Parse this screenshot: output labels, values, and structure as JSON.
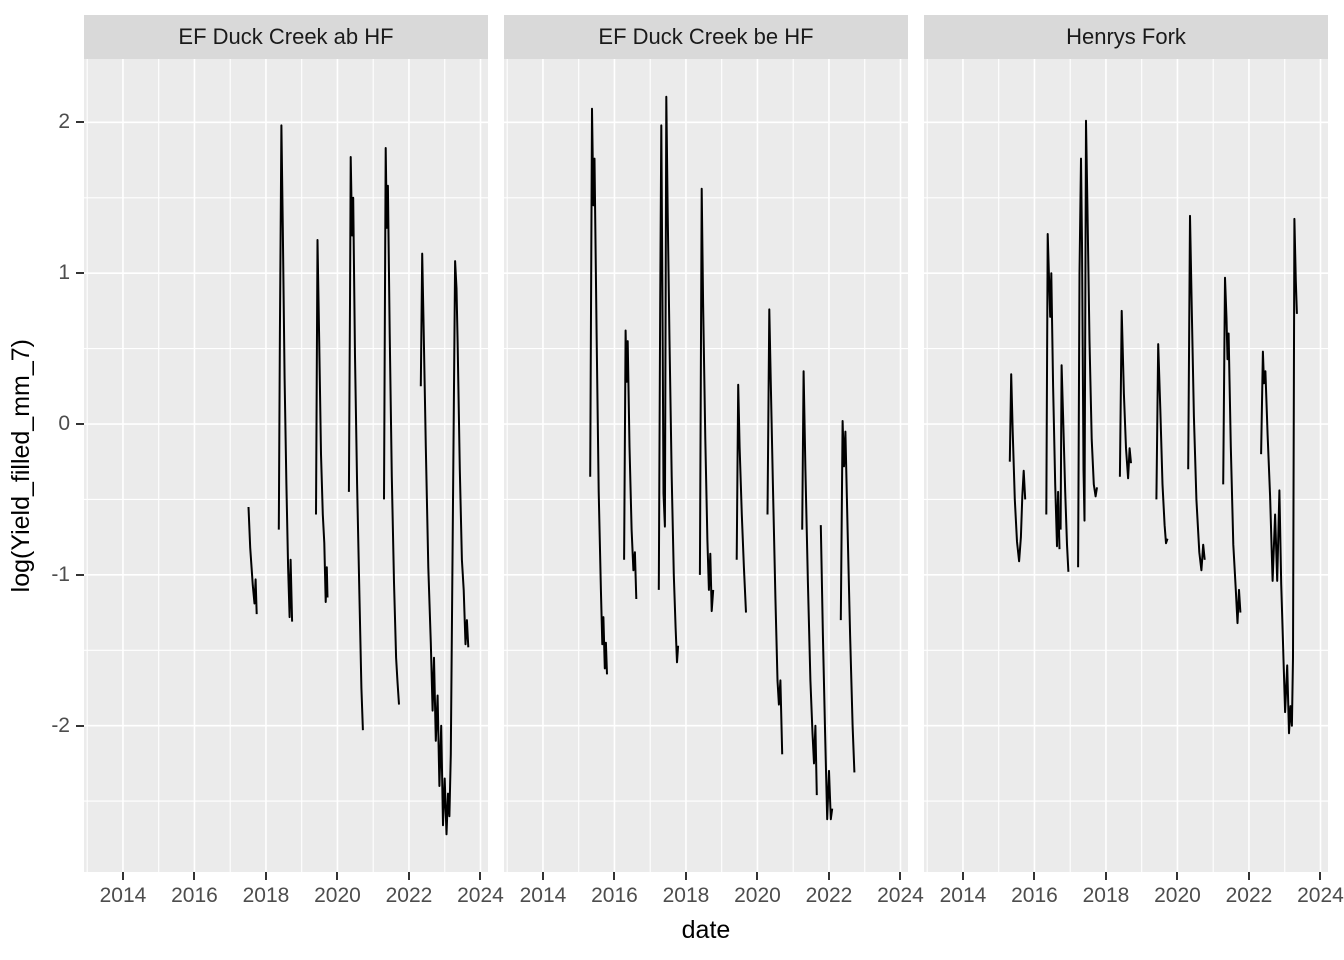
{
  "figure": {
    "background": "#FFFFFF",
    "panel_background": "#EBEBEB",
    "strip_background": "#D9D9D9",
    "grid_color": "#FFFFFF",
    "series_color": "#000000",
    "tick_mark_color": "#333333",
    "tick_label_color": "#4D4D4D",
    "title_color": "#000000"
  },
  "chart_data": {
    "type": "line",
    "faceted": true,
    "title": "",
    "xlabel": "date",
    "ylabel": "log(Yield_filled_mm_7)",
    "legend_position": "none",
    "grid": "on",
    "x_domain": [
      2012.91,
      2024.21
    ],
    "y_domain": [
      -2.97,
      2.42
    ],
    "x_major_ticks": [
      2014,
      2016,
      2018,
      2020,
      2022,
      2024
    ],
    "x_minor_ticks": [
      2013,
      2015,
      2017,
      2019,
      2021,
      2023
    ],
    "y_major_ticks": [
      2,
      1,
      0,
      -1,
      -2
    ],
    "y_minor_ticks": [
      1.5,
      0.5,
      -0.5,
      -1.5,
      -2.5
    ],
    "panels": [
      {
        "label": "EF Duck Creek ab HF",
        "segments": [
          [
            [
              2017.51,
              -0.55
            ],
            [
              2017.56,
              -0.82
            ],
            [
              2017.63,
              -1.07
            ],
            [
              2017.68,
              -1.19
            ],
            [
              2017.71,
              -1.03
            ],
            [
              2017.74,
              -1.26
            ]
          ],
          [
            [
              2018.36,
              -0.7
            ],
            [
              2018.39,
              0.6
            ],
            [
              2018.43,
              1.98
            ],
            [
              2018.47,
              1.3
            ],
            [
              2018.52,
              0.3
            ],
            [
              2018.57,
              -0.4
            ],
            [
              2018.62,
              -0.95
            ],
            [
              2018.66,
              -1.28
            ],
            [
              2018.69,
              -0.9
            ],
            [
              2018.73,
              -1.31
            ]
          ],
          [
            [
              2019.4,
              -0.6
            ],
            [
              2019.44,
              1.22
            ],
            [
              2019.49,
              0.55
            ],
            [
              2019.54,
              -0.2
            ],
            [
              2019.59,
              -0.6
            ],
            [
              2019.63,
              -0.79
            ],
            [
              2019.67,
              -1.18
            ],
            [
              2019.7,
              -0.95
            ],
            [
              2019.72,
              -1.15
            ]
          ],
          [
            [
              2020.32,
              -0.45
            ],
            [
              2020.35,
              0.8
            ],
            [
              2020.37,
              1.77
            ],
            [
              2020.41,
              1.25
            ],
            [
              2020.44,
              1.5
            ],
            [
              2020.49,
              0.45
            ],
            [
              2020.55,
              -0.4
            ],
            [
              2020.61,
              -1.1
            ],
            [
              2020.67,
              -1.75
            ],
            [
              2020.71,
              -2.03
            ]
          ],
          [
            [
              2021.3,
              -0.5
            ],
            [
              2021.33,
              0.9
            ],
            [
              2021.35,
              1.83
            ],
            [
              2021.38,
              1.3
            ],
            [
              2021.41,
              1.58
            ],
            [
              2021.46,
              0.6
            ],
            [
              2021.52,
              -0.35
            ],
            [
              2021.58,
              -1.05
            ],
            [
              2021.64,
              -1.55
            ],
            [
              2021.68,
              -1.71
            ],
            [
              2021.72,
              -1.86
            ]
          ],
          [
            [
              2022.33,
              0.25
            ],
            [
              2022.37,
              1.13
            ],
            [
              2022.41,
              0.65
            ],
            [
              2022.47,
              -0.15
            ],
            [
              2022.54,
              -0.95
            ],
            [
              2022.61,
              -1.45
            ],
            [
              2022.66,
              -1.9
            ],
            [
              2022.7,
              -1.55
            ],
            [
              2022.75,
              -2.1
            ],
            [
              2022.8,
              -1.8
            ],
            [
              2022.85,
              -2.4
            ],
            [
              2022.9,
              -2.0
            ],
            [
              2022.95,
              -2.66
            ],
            [
              2023.0,
              -2.35
            ],
            [
              2023.05,
              -2.72
            ],
            [
              2023.09,
              -2.45
            ],
            [
              2023.13,
              -2.6
            ],
            [
              2023.17,
              -2.19
            ],
            [
              2023.29,
              1.08
            ],
            [
              2023.33,
              0.9
            ],
            [
              2023.36,
              0.55
            ],
            [
              2023.42,
              -0.3
            ],
            [
              2023.48,
              -0.9
            ],
            [
              2023.53,
              -1.1
            ],
            [
              2023.58,
              -1.46
            ],
            [
              2023.62,
              -1.3
            ],
            [
              2023.66,
              -1.48
            ]
          ]
        ]
      },
      {
        "label": "EF Duck Creek be HF",
        "segments": [
          [
            [
              2015.32,
              -0.35
            ],
            [
              2015.37,
              2.09
            ],
            [
              2015.41,
              1.45
            ],
            [
              2015.44,
              1.76
            ],
            [
              2015.5,
              0.6
            ],
            [
              2015.56,
              -0.45
            ],
            [
              2015.62,
              -1.1
            ],
            [
              2015.66,
              -1.46
            ],
            [
              2015.69,
              -1.28
            ],
            [
              2015.73,
              -1.62
            ],
            [
              2015.76,
              -1.45
            ],
            [
              2015.79,
              -1.66
            ]
          ],
          [
            [
              2016.27,
              -0.9
            ],
            [
              2016.31,
              0.62
            ],
            [
              2016.34,
              0.28
            ],
            [
              2016.37,
              0.55
            ],
            [
              2016.42,
              -0.15
            ],
            [
              2016.48,
              -0.7
            ],
            [
              2016.53,
              -0.97
            ],
            [
              2016.57,
              -0.85
            ],
            [
              2016.61,
              -1.16
            ]
          ],
          [
            [
              2017.24,
              -1.1
            ],
            [
              2017.28,
              0.8
            ],
            [
              2017.31,
              1.98
            ],
            [
              2017.34,
              0.9
            ],
            [
              2017.37,
              -0.46
            ],
            [
              2017.41,
              -0.68
            ],
            [
              2017.45,
              2.17
            ],
            [
              2017.49,
              1.4
            ],
            [
              2017.54,
              0.55
            ],
            [
              2017.6,
              -0.35
            ],
            [
              2017.66,
              -1.0
            ],
            [
              2017.71,
              -1.35
            ],
            [
              2017.75,
              -1.58
            ],
            [
              2017.78,
              -1.47
            ]
          ],
          [
            [
              2018.39,
              -1.0
            ],
            [
              2018.44,
              1.56
            ],
            [
              2018.48,
              0.8
            ],
            [
              2018.54,
              -0.1
            ],
            [
              2018.6,
              -0.77
            ],
            [
              2018.64,
              -1.1
            ],
            [
              2018.68,
              -0.86
            ],
            [
              2018.72,
              -1.24
            ],
            [
              2018.76,
              -1.1
            ]
          ],
          [
            [
              2019.42,
              -0.9
            ],
            [
              2019.46,
              0.26
            ],
            [
              2019.5,
              -0.15
            ],
            [
              2019.56,
              -0.6
            ],
            [
              2019.62,
              -0.95
            ],
            [
              2019.68,
              -1.25
            ]
          ],
          [
            [
              2020.28,
              -0.6
            ],
            [
              2020.33,
              0.76
            ],
            [
              2020.37,
              0.3
            ],
            [
              2020.43,
              -0.4
            ],
            [
              2020.5,
              -1.15
            ],
            [
              2020.56,
              -1.7
            ],
            [
              2020.6,
              -1.86
            ],
            [
              2020.64,
              -1.7
            ],
            [
              2020.69,
              -2.19
            ]
          ],
          [
            [
              2021.25,
              -0.7
            ],
            [
              2021.29,
              0.35
            ],
            [
              2021.34,
              -0.3
            ],
            [
              2021.41,
              -1.05
            ],
            [
              2021.48,
              -1.7
            ],
            [
              2021.54,
              -2.05
            ],
            [
              2021.58,
              -2.25
            ],
            [
              2021.62,
              -2.0
            ],
            [
              2021.66,
              -2.46
            ]
          ],
          [
            [
              2021.77,
              -0.67
            ],
            [
              2021.83,
              -1.4
            ],
            [
              2021.89,
              -2.05
            ],
            [
              2021.95,
              -2.62
            ],
            [
              2022.0,
              -2.3
            ],
            [
              2022.05,
              -2.62
            ],
            [
              2022.09,
              -2.55
            ]
          ],
          [
            [
              2022.33,
              -1.3
            ],
            [
              2022.38,
              0.02
            ],
            [
              2022.42,
              -0.28
            ],
            [
              2022.46,
              -0.05
            ],
            [
              2022.52,
              -0.7
            ],
            [
              2022.59,
              -1.4
            ],
            [
              2022.66,
              -2.0
            ],
            [
              2022.71,
              -2.31
            ]
          ]
        ]
      },
      {
        "label": "Henrys Fork",
        "segments": [
          [
            [
              2015.31,
              -0.25
            ],
            [
              2015.35,
              0.33
            ],
            [
              2015.39,
              -0.05
            ],
            [
              2015.45,
              -0.5
            ],
            [
              2015.51,
              -0.78
            ],
            [
              2015.57,
              -0.91
            ],
            [
              2015.62,
              -0.75
            ],
            [
              2015.66,
              -0.48
            ],
            [
              2015.7,
              -0.31
            ],
            [
              2015.74,
              -0.5
            ]
          ],
          [
            [
              2016.33,
              -0.6
            ],
            [
              2016.37,
              1.26
            ],
            [
              2016.41,
              0.95
            ],
            [
              2016.44,
              0.71
            ],
            [
              2016.47,
              1.0
            ],
            [
              2016.52,
              0.25
            ],
            [
              2016.58,
              -0.4
            ],
            [
              2016.63,
              -0.81
            ],
            [
              2016.66,
              -0.45
            ],
            [
              2016.7,
              -0.83
            ]
          ],
          [
            [
              2016.73,
              -0.7
            ],
            [
              2016.76,
              0.39
            ],
            [
              2016.8,
              0.05
            ],
            [
              2016.86,
              -0.45
            ],
            [
              2016.91,
              -0.8
            ],
            [
              2016.95,
              -0.98
            ]
          ],
          [
            [
              2017.22,
              -0.95
            ],
            [
              2017.26,
              1.0
            ],
            [
              2017.3,
              1.76
            ],
            [
              2017.33,
              1.2
            ],
            [
              2017.37,
              -0.3
            ],
            [
              2017.4,
              -0.64
            ],
            [
              2017.44,
              2.01
            ],
            [
              2017.48,
              1.45
            ],
            [
              2017.54,
              0.55
            ],
            [
              2017.6,
              -0.1
            ],
            [
              2017.66,
              -0.4
            ],
            [
              2017.71,
              -0.48
            ],
            [
              2017.75,
              -0.42
            ]
          ],
          [
            [
              2018.39,
              -0.35
            ],
            [
              2018.44,
              0.75
            ],
            [
              2018.5,
              0.2
            ],
            [
              2018.56,
              -0.16
            ],
            [
              2018.62,
              -0.36
            ],
            [
              2018.66,
              -0.16
            ],
            [
              2018.7,
              -0.26
            ]
          ],
          [
            [
              2019.41,
              -0.5
            ],
            [
              2019.46,
              0.53
            ],
            [
              2019.52,
              0.1
            ],
            [
              2019.58,
              -0.4
            ],
            [
              2019.64,
              -0.67
            ],
            [
              2019.68,
              -0.79
            ],
            [
              2019.72,
              -0.76
            ]
          ],
          [
            [
              2020.3,
              -0.3
            ],
            [
              2020.35,
              1.38
            ],
            [
              2020.4,
              0.75
            ],
            [
              2020.46,
              0.05
            ],
            [
              2020.53,
              -0.5
            ],
            [
              2020.61,
              -0.85
            ],
            [
              2020.67,
              -0.97
            ],
            [
              2020.72,
              -0.8
            ],
            [
              2020.76,
              -0.9
            ]
          ],
          [
            [
              2021.28,
              -0.4
            ],
            [
              2021.33,
              0.97
            ],
            [
              2021.37,
              0.7
            ],
            [
              2021.4,
              0.43
            ],
            [
              2021.43,
              0.6
            ],
            [
              2021.49,
              -0.15
            ],
            [
              2021.56,
              -0.8
            ],
            [
              2021.63,
              -1.1
            ],
            [
              2021.68,
              -1.32
            ],
            [
              2021.72,
              -1.1
            ],
            [
              2021.76,
              -1.25
            ]
          ],
          [
            [
              2022.34,
              -0.2
            ],
            [
              2022.39,
              0.48
            ],
            [
              2022.42,
              0.27
            ],
            [
              2022.46,
              0.35
            ],
            [
              2022.52,
              -0.07
            ],
            [
              2022.59,
              -0.48
            ],
            [
              2022.66,
              -1.04
            ],
            [
              2022.73,
              -0.6
            ],
            [
              2022.79,
              -1.04
            ],
            [
              2022.85,
              -0.44
            ],
            [
              2022.9,
              -1.06
            ],
            [
              2022.95,
              -1.45
            ],
            [
              2023.01,
              -1.91
            ],
            [
              2023.07,
              -1.6
            ],
            [
              2023.12,
              -2.05
            ],
            [
              2023.16,
              -1.87
            ],
            [
              2023.2,
              -2.0
            ],
            [
              2023.23,
              -1.55
            ],
            [
              2023.27,
              1.36
            ],
            [
              2023.31,
              0.95
            ],
            [
              2023.34,
              0.73
            ]
          ]
        ]
      }
    ]
  }
}
